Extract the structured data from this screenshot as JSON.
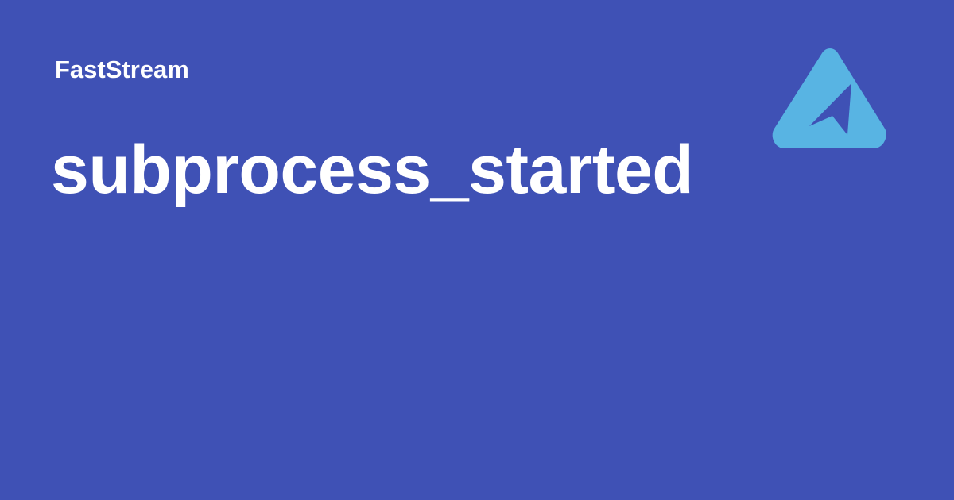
{
  "header": {
    "site_name": "FastStream"
  },
  "main": {
    "title": "subprocess_started"
  },
  "logo": {
    "icon": "faststream-logo-icon"
  },
  "colors": {
    "background": "#3f51b5",
    "text": "#ffffff",
    "logo_accent": "#58b4e3"
  }
}
